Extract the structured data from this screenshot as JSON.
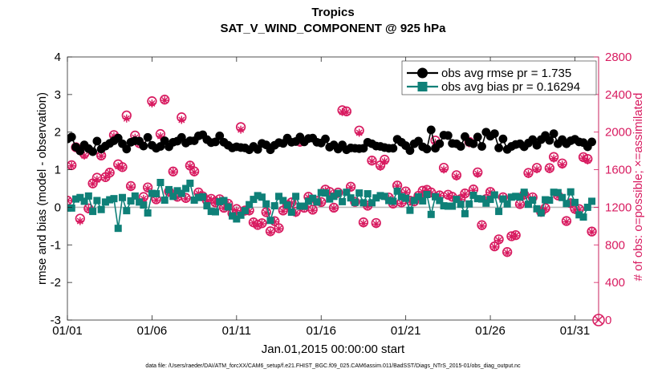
{
  "chart_data": {
    "type": "line",
    "title": "Tropics",
    "subtitle": "SAT_V_WIND_COMPONENT @ 925 hPa",
    "xlabel": "Jan.01,2015 00:00:00 start",
    "ylabel": "rmse and bias (model - observation)",
    "y2label": "# of obs: o=possible; ×=assimilated",
    "footnote": "data file: /Users/raeder/DAI/ATM_forcXX/CAM6_setup/f.e21.FHIST_BGC.f09_025.CAM6assim.011/BadSST/Diags_NTrS_2015-01/obs_diag_output.nc",
    "xlim": [
      1,
      32.4
    ],
    "ylim": [
      -3,
      4
    ],
    "y2lim": [
      0,
      2800
    ],
    "x_tick_values": [
      1,
      6,
      11,
      16,
      21,
      26,
      31
    ],
    "x_tick_labels": [
      "01/01",
      "01/06",
      "01/11",
      "01/16",
      "01/21",
      "01/26",
      "01/31"
    ],
    "y_tick_labels": [
      "-3",
      "-2",
      "-1",
      "0",
      "1",
      "2",
      "3",
      "4"
    ],
    "y2_tick_labels": [
      "0",
      "400",
      "800",
      "1200",
      "1600",
      "2000",
      "2400",
      "2800"
    ],
    "colors": {
      "rmse": "#000000",
      "bias": "#0f8078",
      "obs": "#d81b60",
      "zero_line": "#bbbbbb"
    },
    "legend_position": "top-right",
    "series": [
      {
        "name": "obs avg rmse pr = 1.735",
        "values": [
          1.82,
          1.87,
          1.6,
          1.5,
          1.66,
          1.56,
          1.48,
          1.76,
          1.55,
          1.63,
          1.7,
          1.77,
          1.84,
          1.69,
          1.55,
          1.73,
          1.77,
          1.76,
          1.63,
          1.86,
          1.65,
          1.57,
          1.62,
          1.77,
          1.61,
          1.73,
          1.76,
          1.86,
          1.71,
          1.77,
          1.77,
          1.9,
          1.93,
          1.8,
          1.72,
          1.74,
          1.9,
          1.73,
          1.65,
          1.58,
          1.61,
          1.59,
          1.58,
          1.53,
          1.62,
          1.54,
          1.7,
          1.66,
          1.53,
          1.65,
          1.72,
          1.7,
          1.84,
          1.73,
          1.75,
          1.87,
          1.74,
          1.83,
          1.84,
          1.73,
          1.71,
          1.82,
          1.6,
          1.66,
          1.55,
          1.66,
          1.53,
          1.58,
          1.57,
          1.56,
          1.57,
          1.73,
          1.69,
          1.63,
          1.62,
          1.59,
          1.57,
          1.57,
          1.81,
          1.73,
          1.64,
          1.51,
          1.69,
          1.76,
          1.61,
          1.55,
          2.06,
          1.57,
          1.69,
          1.92,
          1.91,
          1.7,
          1.69,
          1.62,
          1.88,
          1.73,
          1.69,
          1.87,
          1.62,
          2.0,
          1.89,
          1.96,
          1.58,
          1.82,
          1.54,
          1.62,
          1.67,
          1.69,
          1.61,
          1.71,
          1.8,
          1.65,
          1.8,
          1.91,
          1.78,
          1.96,
          1.69,
          1.8,
          1.69,
          1.77,
          1.81,
          1.74,
          1.72,
          1.61,
          1.74
        ]
      },
      {
        "name": "obs avg bias pr = 0.16294",
        "values": [
          -0.02,
          -0.02,
          0.22,
          0.26,
          0.16,
          0.3,
          -0.11,
          0.18,
          -0.06,
          0.14,
          0.2,
          0.23,
          -0.56,
          0.26,
          -0.09,
          0.17,
          0.3,
          0.14,
          0.06,
          -0.15,
          0.37,
          0.36,
          0.66,
          0.19,
          0.47,
          0.29,
          0.44,
          0.37,
          0.5,
          0.64,
          0.19,
          0.26,
          0.28,
          0.04,
          -0.11,
          -0.12,
          0.15,
          0.18,
          0.01,
          -0.23,
          -0.31,
          -0.21,
          -0.09,
          0.07,
          0.21,
          0.31,
          0.27,
          0.09,
          -0.35,
          0.04,
          0.29,
          0.18,
          0.06,
          -0.13,
          0.29,
          0.03,
          0.03,
          0.16,
          0.24,
          0.14,
          0.39,
          0.38,
          0.22,
          0.29,
          0.37,
          0.15,
          0.4,
          0.25,
          0.13,
          0.38,
          0.12,
          0.36,
          0.12,
          0.25,
          0.31,
          0.29,
          0.18,
          0.16,
          0.43,
          0.28,
          0.24,
          -0.08,
          0.18,
          0.28,
          0.17,
          0.34,
          -0.19,
          0.28,
          0.18,
          0.04,
          0.03,
          0.03,
          0.21,
          0.08,
          -0.17,
          0.09,
          0.32,
          0.23,
          0.22,
          0.11,
          0.21,
          0.33,
          -0.11,
          0.22,
          0.09,
          0.27,
          0.29,
          0.27,
          0.4,
          0.08,
          0.19,
          -0.04,
          -0.15,
          0.2,
          0.19,
          0.4,
          0.39,
          0.26,
          0.1,
          0.41,
          0.13,
          -0.2,
          -0.26,
          0.0,
          0.16
        ]
      },
      {
        "name": "# of obs possible",
        "values": [
          1271,
          1648,
          1839,
          1080,
          1769,
          1188,
          1454,
          1515,
          1751,
          1521,
          1569,
          1969,
          1658,
          1628,
          2178,
          1426,
          1964,
          1883,
          1310,
          1412,
          2329,
          1285,
          1980,
          2346,
          1369,
          1581,
          1312,
          2158,
          1299,
          1644,
          1582,
          1358,
          1317,
          1272,
          1290,
          1253,
          1286,
          1195,
          1238,
          1136,
          1182,
          2054,
          1166,
          1167,
          1040,
          1012,
          1031,
          1148,
          945,
          1053,
          978,
          1166,
          1224,
          1252,
          1153,
          1898,
          1195,
          1312,
          1175,
          1268,
          1256,
          1388,
          1364,
          1196,
          1357,
          2233,
          2221,
          1419,
          1258,
          2017,
          1040,
          1217,
          1697,
          1033,
          1646,
          1707,
          1304,
          1240,
          1432,
          1252,
          1369,
          1271,
          1263,
          1322,
          1376,
          1386,
          1358,
          1911,
          1327,
          1621,
          1334,
          1312,
          1542,
          1288,
          1347,
          1897,
          1390,
          1572,
          1010,
          1288,
          1364,
          784,
          859,
          1307,
          724,
          892,
          904,
          1234,
          1336,
          1566,
          1306,
          1620,
          1151,
          1191,
          1617,
          1736,
          1326,
          1667,
          1054,
          1244,
          1184,
          1181,
          1734,
          1715,
          942
        ]
      },
      {
        "name": "# of obs assimilated",
        "values": [
          1271,
          1641,
          1831,
          1053,
          1750,
          1181,
          1449,
          1495,
          1744,
          1515,
          1567,
          1957,
          1637,
          1620,
          2145,
          1415,
          1941,
          1873,
          1290,
          1399,
          2305,
          1276,
          1957,
          2338,
          1352,
          1575,
          1305,
          2130,
          1290,
          1636,
          1572,
          1347,
          1307,
          1267,
          1280,
          1243,
          1277,
          1189,
          1231,
          1125,
          1166,
          2026,
          1154,
          1155,
          1034,
          1006,
          1025,
          1140,
          934,
          1045,
          971,
          1158,
          1215,
          1246,
          1139,
          1888,
          1190,
          1304,
          1168,
          1259,
          1246,
          1378,
          1353,
          1189,
          1341,
          2214,
          2211,
          1409,
          1252,
          1993,
          1028,
          1209,
          1689,
          1021,
          1631,
          1689,
          1295,
          1232,
          1425,
          1243,
          1360,
          1266,
          1257,
          1312,
          1366,
          1379,
          1350,
          1888,
          1324,
          1602,
          1323,
          1307,
          1527,
          1282,
          1340,
          1880,
          1381,
          1556,
          1001,
          1277,
          1359,
          778,
          848,
          1298,
          715,
          888,
          897,
          1225,
          1320,
          1553,
          1298,
          1604,
          1146,
          1180,
          1607,
          1718,
          1318,
          1653,
          1045,
          1239,
          1170,
          1170,
          1723,
          1699,
          936
        ]
      }
    ]
  }
}
